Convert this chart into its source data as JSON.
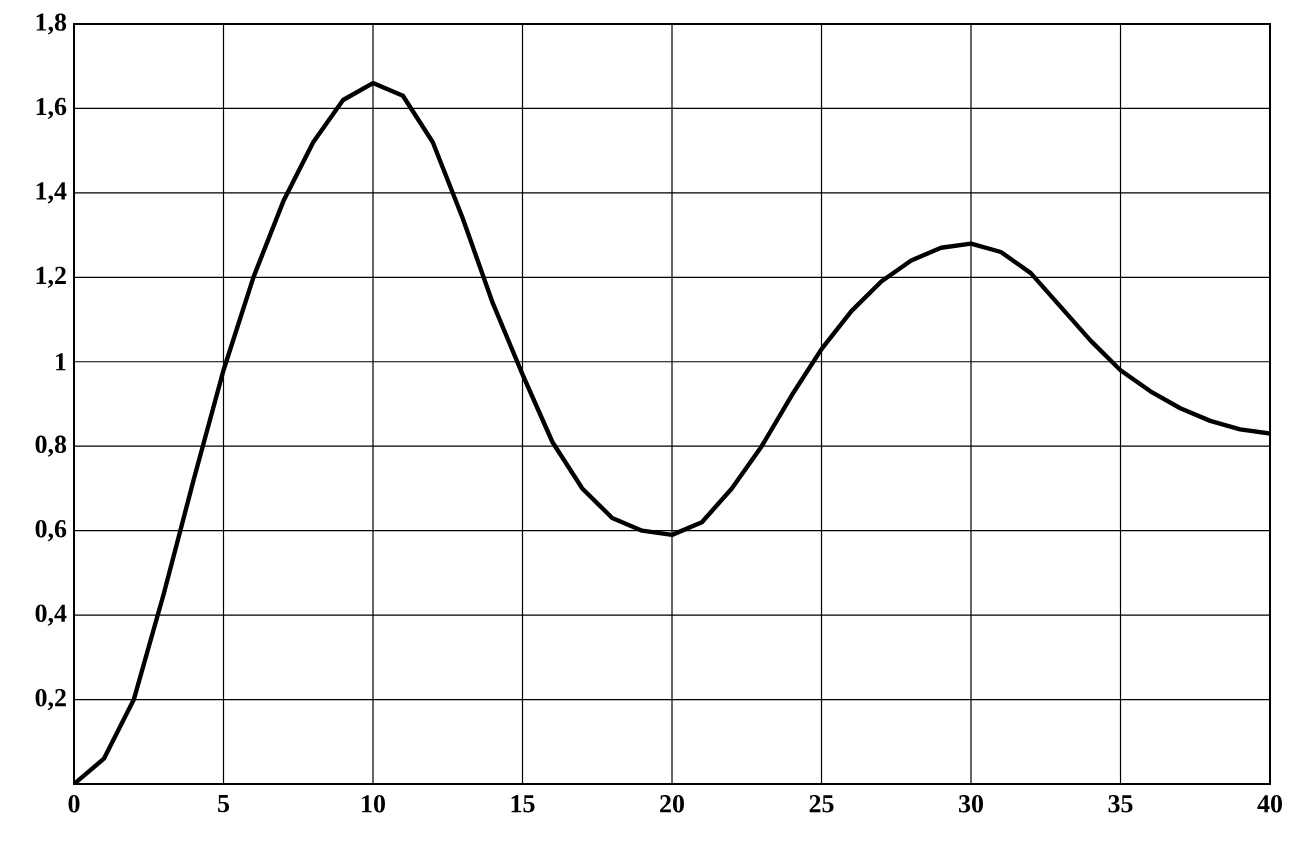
{
  "chart_data": {
    "type": "line",
    "color": "#000000",
    "x": [
      0,
      1,
      2,
      3,
      4,
      5,
      6,
      7,
      8,
      9,
      10,
      11,
      12,
      13,
      14,
      15,
      16,
      17,
      18,
      19,
      20,
      21,
      22,
      23,
      24,
      25,
      26,
      27,
      28,
      29,
      30,
      31,
      32,
      33,
      34,
      35,
      36,
      37,
      38,
      39,
      40
    ],
    "values": [
      0,
      0.06,
      0.2,
      0.45,
      0.72,
      0.98,
      1.2,
      1.38,
      1.52,
      1.62,
      1.66,
      1.63,
      1.52,
      1.34,
      1.14,
      0.97,
      0.81,
      0.7,
      0.63,
      0.6,
      0.59,
      0.62,
      0.7,
      0.8,
      0.92,
      1.03,
      1.12,
      1.19,
      1.24,
      1.27,
      1.28,
      1.26,
      1.21,
      1.13,
      1.05,
      0.98,
      0.93,
      0.89,
      0.86,
      0.84,
      0.83
    ],
    "xlim": [
      0,
      40
    ],
    "ylim": [
      0,
      1.8
    ],
    "xticks": [
      {
        "value": 0,
        "label": "0"
      },
      5,
      10,
      15,
      20,
      25,
      30,
      35,
      40
    ],
    "yticks": [
      {
        "value": 0,
        "label": null
      },
      {
        "value": 0.2,
        "label": "0,2"
      },
      {
        "value": 0.4,
        "label": "0,4"
      },
      {
        "value": 0.6,
        "label": "0,6"
      },
      {
        "value": 0.8,
        "label": "0,8"
      },
      1,
      {
        "value": 1.2,
        "label": "1,2"
      },
      {
        "value": 1.4,
        "label": "1,4"
      },
      {
        "value": 1.6,
        "label": "1,6"
      },
      {
        "value": 1.8,
        "label": "1,8"
      }
    ],
    "grid": true,
    "marker": "none",
    "line_style": "solid"
  }
}
